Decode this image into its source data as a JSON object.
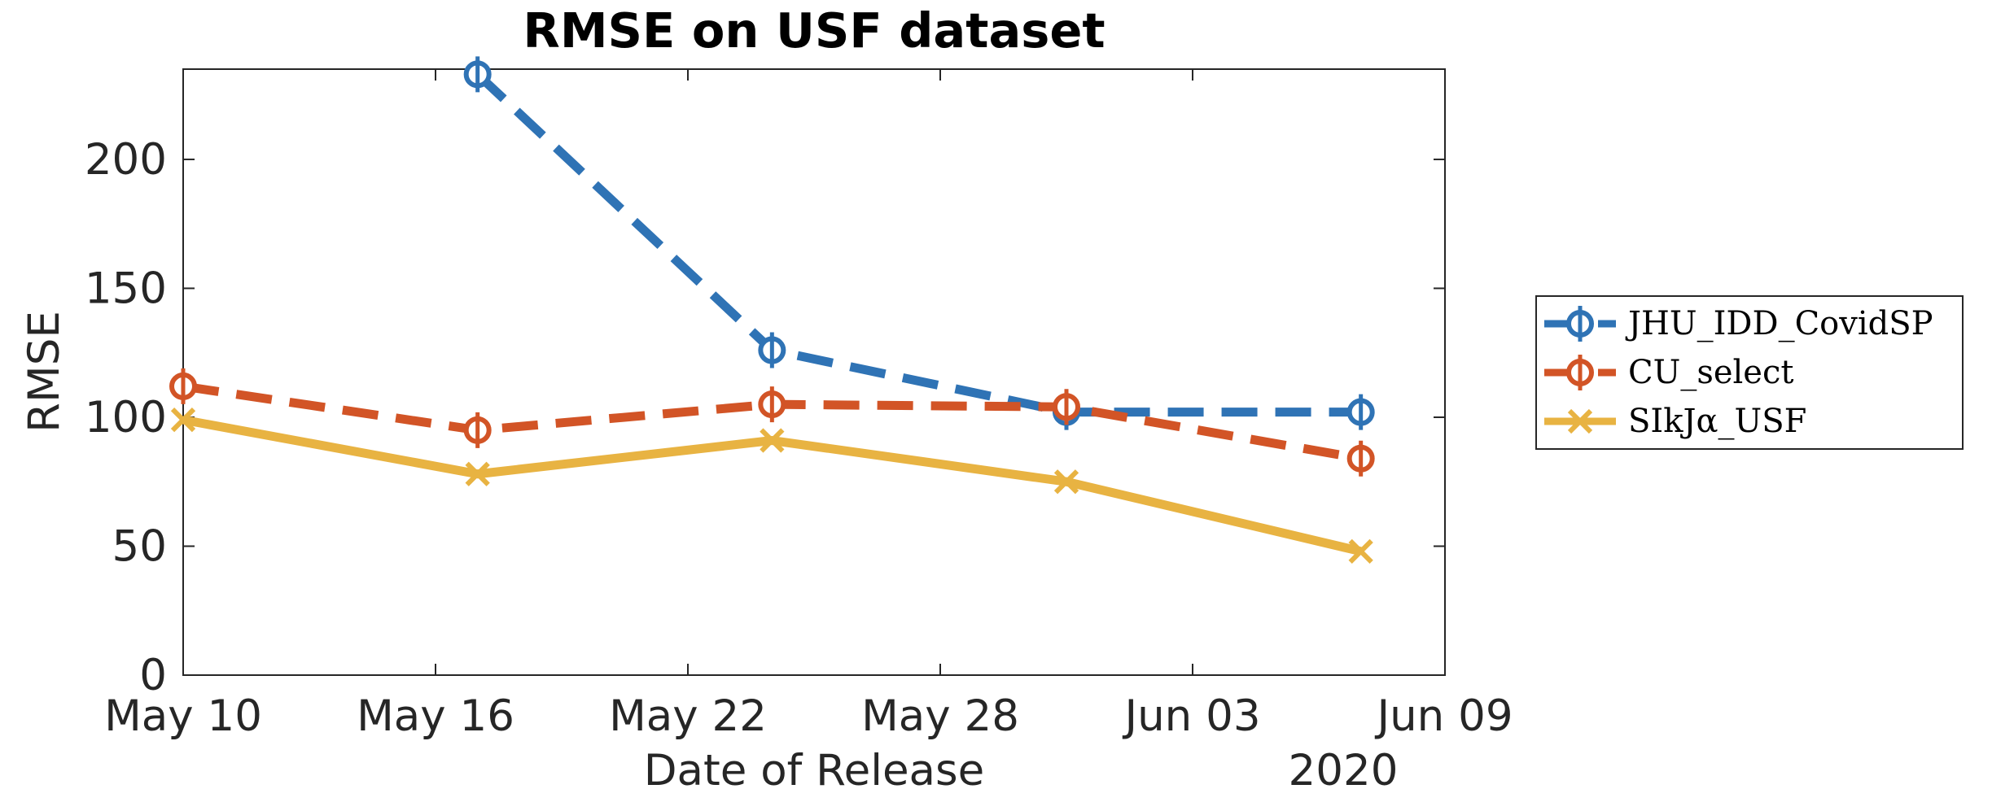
{
  "chart_data": {
    "type": "line",
    "title": "RMSE on USF dataset",
    "xlabel": "Date of Release",
    "ylabel": "RMSE",
    "x_axis_year": "2020",
    "xlim": [
      "2020-05-10",
      "2020-06-09"
    ],
    "ylim": [
      0,
      235
    ],
    "x_ticks": [
      "May 10",
      "May 16",
      "May 22",
      "May 28",
      "Jun 03",
      "Jun 09"
    ],
    "y_ticks": [
      "0",
      "50",
      "100",
      "150",
      "200"
    ],
    "grid": false,
    "legend_position": "outside-right",
    "series": [
      {
        "name": "JHU_IDD_CovidSP",
        "color": "#2F73B5",
        "line_style": "dashed",
        "marker": "circle-cross",
        "x": [
          "2020-05-17",
          "2020-05-24",
          "2020-05-31",
          "2020-06-07"
        ],
        "y": [
          233,
          126,
          102,
          102
        ]
      },
      {
        "name": "CU_select",
        "color": "#D25426",
        "line_style": "dashed",
        "marker": "circle-cross",
        "x": [
          "2020-05-10",
          "2020-05-17",
          "2020-05-24",
          "2020-05-31",
          "2020-06-07"
        ],
        "y": [
          112,
          95,
          105,
          104,
          84
        ]
      },
      {
        "name": "SIkJα_USF",
        "color": "#E8B342",
        "line_style": "solid",
        "marker": "x",
        "x": [
          "2020-05-10",
          "2020-05-17",
          "2020-05-24",
          "2020-05-31",
          "2020-06-07"
        ],
        "y": [
          99,
          78,
          91,
          75,
          48
        ]
      }
    ]
  }
}
